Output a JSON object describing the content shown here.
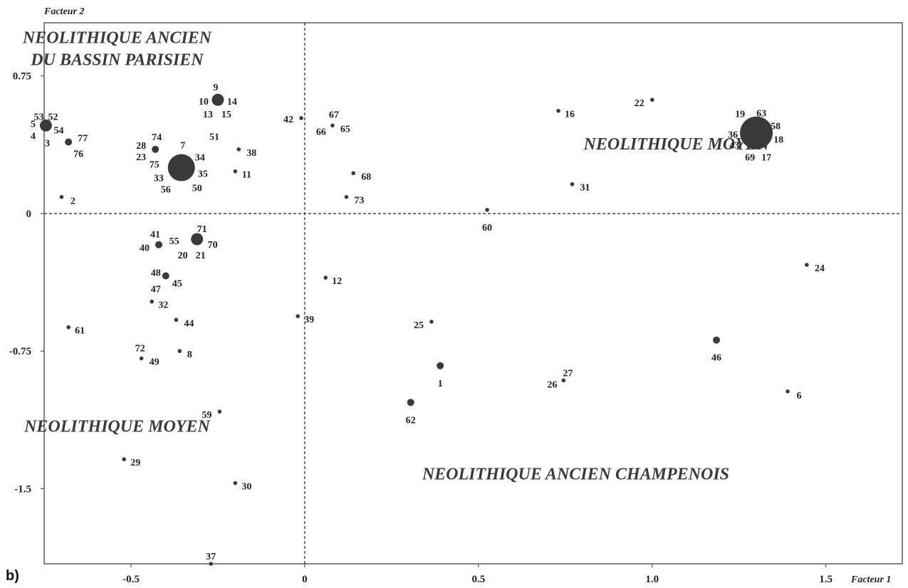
{
  "chart_data": {
    "type": "scatter",
    "panel_label": "b)",
    "xlabel": "Facteur 1",
    "ylabel": "Facteur 2",
    "xlim": [
      -0.75,
      1.72
    ],
    "ylim": [
      -1.91,
      1.04
    ],
    "xticks": [
      {
        "value": -0.5,
        "label": "-0.5"
      },
      {
        "value": 0,
        "label": "0"
      },
      {
        "value": 0.5,
        "label": "0.5"
      },
      {
        "value": 1.0,
        "label": "1.0"
      },
      {
        "value": 1.5,
        "label": "1.5"
      }
    ],
    "yticks": [
      {
        "value": 0.75,
        "label": "0.75"
      },
      {
        "value": 0,
        "label": "0"
      },
      {
        "value": -0.75,
        "label": "-0.75"
      },
      {
        "value": -1.5,
        "label": "-1.5"
      }
    ],
    "grid": false,
    "reference_lines": {
      "x": 0,
      "y": 0
    },
    "group_labels": [
      {
        "text": "NEOLITHIQUE ANCIEN",
        "x": -0.54,
        "y": 0.93
      },
      {
        "text": "DU BASSIN PARISIEN",
        "x": -0.54,
        "y": 0.81
      },
      {
        "text": "NEOLITHIQUE MOYEN",
        "x": 1.07,
        "y": 0.35
      },
      {
        "text": "NEOLITHIQUE MOYEN",
        "x": -0.54,
        "y": -1.19
      },
      {
        "text": "NEOLITHIQUE ANCIEN CHAMPENOIS",
        "x": 0.78,
        "y": -1.45
      }
    ],
    "points": [
      {
        "x": -0.745,
        "y": 0.48,
        "size": "medium",
        "labels": [
          {
            "text": "53",
            "dx": -10,
            "dy": -13
          },
          {
            "text": "52",
            "dx": 10,
            "dy": -13
          },
          {
            "text": "5",
            "dx": -18,
            "dy": -3
          },
          {
            "text": "54",
            "dx": 18,
            "dy": 6
          },
          {
            "text": "4",
            "dx": -18,
            "dy": 14
          },
          {
            "text": "3",
            "dx": 2,
            "dy": 24
          }
        ]
      },
      {
        "x": -0.68,
        "y": 0.39,
        "size": "small",
        "labels": [
          {
            "text": "77",
            "dx": 20,
            "dy": -6
          },
          {
            "text": "76",
            "dx": 14,
            "dy": 16
          }
        ]
      },
      {
        "x": -0.7,
        "y": 0.09,
        "size": "tiny",
        "labels": [
          {
            "text": "2",
            "dx": 16,
            "dy": 5
          }
        ]
      },
      {
        "x": -0.43,
        "y": 0.35,
        "size": "small",
        "labels": [
          {
            "text": "28",
            "dx": -20,
            "dy": -6
          },
          {
            "text": "74",
            "dx": 2,
            "dy": -18
          },
          {
            "text": "23",
            "dx": -20,
            "dy": 10
          }
        ]
      },
      {
        "x": -0.355,
        "y": 0.25,
        "size": "large",
        "labels": [
          {
            "text": "7",
            "dx": 2,
            "dy": -32
          },
          {
            "text": "34",
            "dx": 26,
            "dy": -15
          },
          {
            "text": "75",
            "dx": -38,
            "dy": -5
          },
          {
            "text": "35",
            "dx": 30,
            "dy": 8
          },
          {
            "text": "33",
            "dx": -32,
            "dy": 14
          },
          {
            "text": "56",
            "dx": -22,
            "dy": 30
          },
          {
            "text": "50",
            "dx": 22,
            "dy": 28
          }
        ]
      },
      {
        "x": -0.25,
        "y": 0.62,
        "size": "medium",
        "labels": [
          {
            "text": "9",
            "dx": -3,
            "dy": -18
          },
          {
            "text": "10",
            "dx": -20,
            "dy": 2
          },
          {
            "text": "14",
            "dx": 20,
            "dy": 2
          },
          {
            "text": "13",
            "dx": -14,
            "dy": 20
          },
          {
            "text": "15",
            "dx": 12,
            "dy": 20
          }
        ]
      },
      {
        "x": -0.26,
        "y": 0.42,
        "size": "none",
        "labels": [
          {
            "text": "51",
            "dx": 0,
            "dy": 0
          }
        ]
      },
      {
        "x": -0.19,
        "y": 0.35,
        "size": "tiny",
        "labels": [
          {
            "text": "38",
            "dx": 18,
            "dy": 4
          }
        ]
      },
      {
        "x": -0.2,
        "y": 0.23,
        "size": "tiny",
        "labels": [
          {
            "text": "11",
            "dx": 16,
            "dy": 4
          }
        ]
      },
      {
        "x": -0.01,
        "y": 0.52,
        "size": "tiny",
        "labels": [
          {
            "text": "42",
            "dx": -18,
            "dy": 1
          }
        ]
      },
      {
        "x": 0.08,
        "y": 0.48,
        "size": "tiny",
        "labels": [
          {
            "text": "67",
            "dx": 2,
            "dy": -16
          },
          {
            "text": "66",
            "dx": -16,
            "dy": 8
          },
          {
            "text": "65",
            "dx": 18,
            "dy": 4
          }
        ]
      },
      {
        "x": 0.14,
        "y": 0.22,
        "size": "tiny",
        "labels": [
          {
            "text": "68",
            "dx": 18,
            "dy": 4
          }
        ]
      },
      {
        "x": 0.12,
        "y": 0.09,
        "size": "tiny",
        "labels": [
          {
            "text": "73",
            "dx": 18,
            "dy": 4
          }
        ]
      },
      {
        "x": 0.525,
        "y": 0.02,
        "size": "tiny",
        "labels": [
          {
            "text": "60",
            "dx": 0,
            "dy": 24
          }
        ]
      },
      {
        "x": 0.73,
        "y": 0.56,
        "size": "tiny",
        "labels": [
          {
            "text": "16",
            "dx": 16,
            "dy": 4
          }
        ]
      },
      {
        "x": 0.77,
        "y": 0.16,
        "size": "tiny",
        "labels": [
          {
            "text": "31",
            "dx": 18,
            "dy": 4
          }
        ]
      },
      {
        "x": 1.0,
        "y": 0.62,
        "size": "tiny",
        "labels": [
          {
            "text": "22",
            "dx": -18,
            "dy": 4
          }
        ]
      },
      {
        "x": 1.3,
        "y": 0.44,
        "size": "xlarge",
        "labels": [
          {
            "text": "19",
            "dx": -23,
            "dy": -27
          },
          {
            "text": "63",
            "dx": 7,
            "dy": -28
          },
          {
            "text": "58",
            "dx": 27,
            "dy": -10
          },
          {
            "text": "36",
            "dx": -33,
            "dy": 2
          },
          {
            "text": "18",
            "dx": 31,
            "dy": 9
          },
          {
            "text": "43",
            "dx": -31,
            "dy": 17
          },
          {
            "text": "69",
            "dx": -9,
            "dy": 34
          },
          {
            "text": "17",
            "dx": 14,
            "dy": 34
          }
        ]
      },
      {
        "x": -0.31,
        "y": -0.14,
        "size": "medium",
        "labels": [
          {
            "text": "71",
            "dx": 7,
            "dy": -15
          },
          {
            "text": "55",
            "dx": -32,
            "dy": 2
          },
          {
            "text": "70",
            "dx": 22,
            "dy": 7
          },
          {
            "text": "20",
            "dx": -20,
            "dy": 22
          },
          {
            "text": "21",
            "dx": 5,
            "dy": 22
          }
        ]
      },
      {
        "x": -0.42,
        "y": -0.17,
        "size": "small",
        "labels": [
          {
            "text": "41",
            "dx": -5,
            "dy": -15
          },
          {
            "text": "40",
            "dx": -20,
            "dy": 4
          }
        ]
      },
      {
        "x": -0.4,
        "y": -0.34,
        "size": "small",
        "labels": [
          {
            "text": "48",
            "dx": -14,
            "dy": -5
          },
          {
            "text": "45",
            "dx": 16,
            "dy": 10
          },
          {
            "text": "47",
            "dx": -14,
            "dy": 18
          }
        ]
      },
      {
        "x": -0.44,
        "y": -0.48,
        "size": "tiny",
        "labels": [
          {
            "text": "32",
            "dx": 16,
            "dy": 4
          }
        ]
      },
      {
        "x": -0.37,
        "y": -0.58,
        "size": "tiny",
        "labels": [
          {
            "text": "44",
            "dx": 18,
            "dy": 4
          }
        ]
      },
      {
        "x": -0.68,
        "y": -0.62,
        "size": "tiny",
        "labels": [
          {
            "text": "61",
            "dx": 16,
            "dy": 4
          }
        ]
      },
      {
        "x": -0.47,
        "y": -0.79,
        "size": "tiny",
        "labels": [
          {
            "text": "72",
            "dx": -2,
            "dy": -15
          },
          {
            "text": "49",
            "dx": 18,
            "dy": 4
          }
        ]
      },
      {
        "x": -0.36,
        "y": -0.75,
        "size": "tiny",
        "labels": [
          {
            "text": "8",
            "dx": 14,
            "dy": 4
          }
        ]
      },
      {
        "x": -0.245,
        "y": -1.08,
        "size": "tiny",
        "labels": [
          {
            "text": "59",
            "dx": -18,
            "dy": 4
          }
        ]
      },
      {
        "x": -0.52,
        "y": -1.34,
        "size": "tiny",
        "labels": [
          {
            "text": "29",
            "dx": 16,
            "dy": 4
          }
        ]
      },
      {
        "x": -0.2,
        "y": -1.47,
        "size": "tiny",
        "labels": [
          {
            "text": "30",
            "dx": 16,
            "dy": 4
          }
        ]
      },
      {
        "x": -0.27,
        "y": -1.91,
        "size": "tiny",
        "labels": [
          {
            "text": "37",
            "dx": 0,
            "dy": -11
          }
        ]
      },
      {
        "x": 0.06,
        "y": -0.35,
        "size": "tiny",
        "labels": [
          {
            "text": "12",
            "dx": 16,
            "dy": 4
          }
        ]
      },
      {
        "x": -0.02,
        "y": -0.56,
        "size": "tiny",
        "labels": [
          {
            "text": "39",
            "dx": 16,
            "dy": 4
          }
        ]
      },
      {
        "x": 0.365,
        "y": -0.59,
        "size": "tiny",
        "labels": [
          {
            "text": "25",
            "dx": -18,
            "dy": 4
          }
        ]
      },
      {
        "x": 0.39,
        "y": -0.83,
        "size": "small",
        "labels": [
          {
            "text": "1",
            "dx": 0,
            "dy": 24
          }
        ]
      },
      {
        "x": 0.305,
        "y": -1.03,
        "size": "small",
        "labels": [
          {
            "text": "62",
            "dx": 0,
            "dy": 24
          }
        ]
      },
      {
        "x": 0.745,
        "y": -0.91,
        "size": "tiny",
        "labels": [
          {
            "text": "27",
            "dx": 6,
            "dy": -11
          },
          {
            "text": "26",
            "dx": -16,
            "dy": 5
          }
        ]
      },
      {
        "x": 1.185,
        "y": -0.69,
        "size": "small",
        "labels": [
          {
            "text": "46",
            "dx": 0,
            "dy": 24
          }
        ]
      },
      {
        "x": 1.39,
        "y": -0.97,
        "size": "tiny",
        "labels": [
          {
            "text": "6",
            "dx": 16,
            "dy": 5
          }
        ]
      },
      {
        "x": 1.445,
        "y": -0.28,
        "size": "tiny",
        "labels": [
          {
            "text": "24",
            "dx": 18,
            "dy": 4
          }
        ]
      }
    ]
  }
}
